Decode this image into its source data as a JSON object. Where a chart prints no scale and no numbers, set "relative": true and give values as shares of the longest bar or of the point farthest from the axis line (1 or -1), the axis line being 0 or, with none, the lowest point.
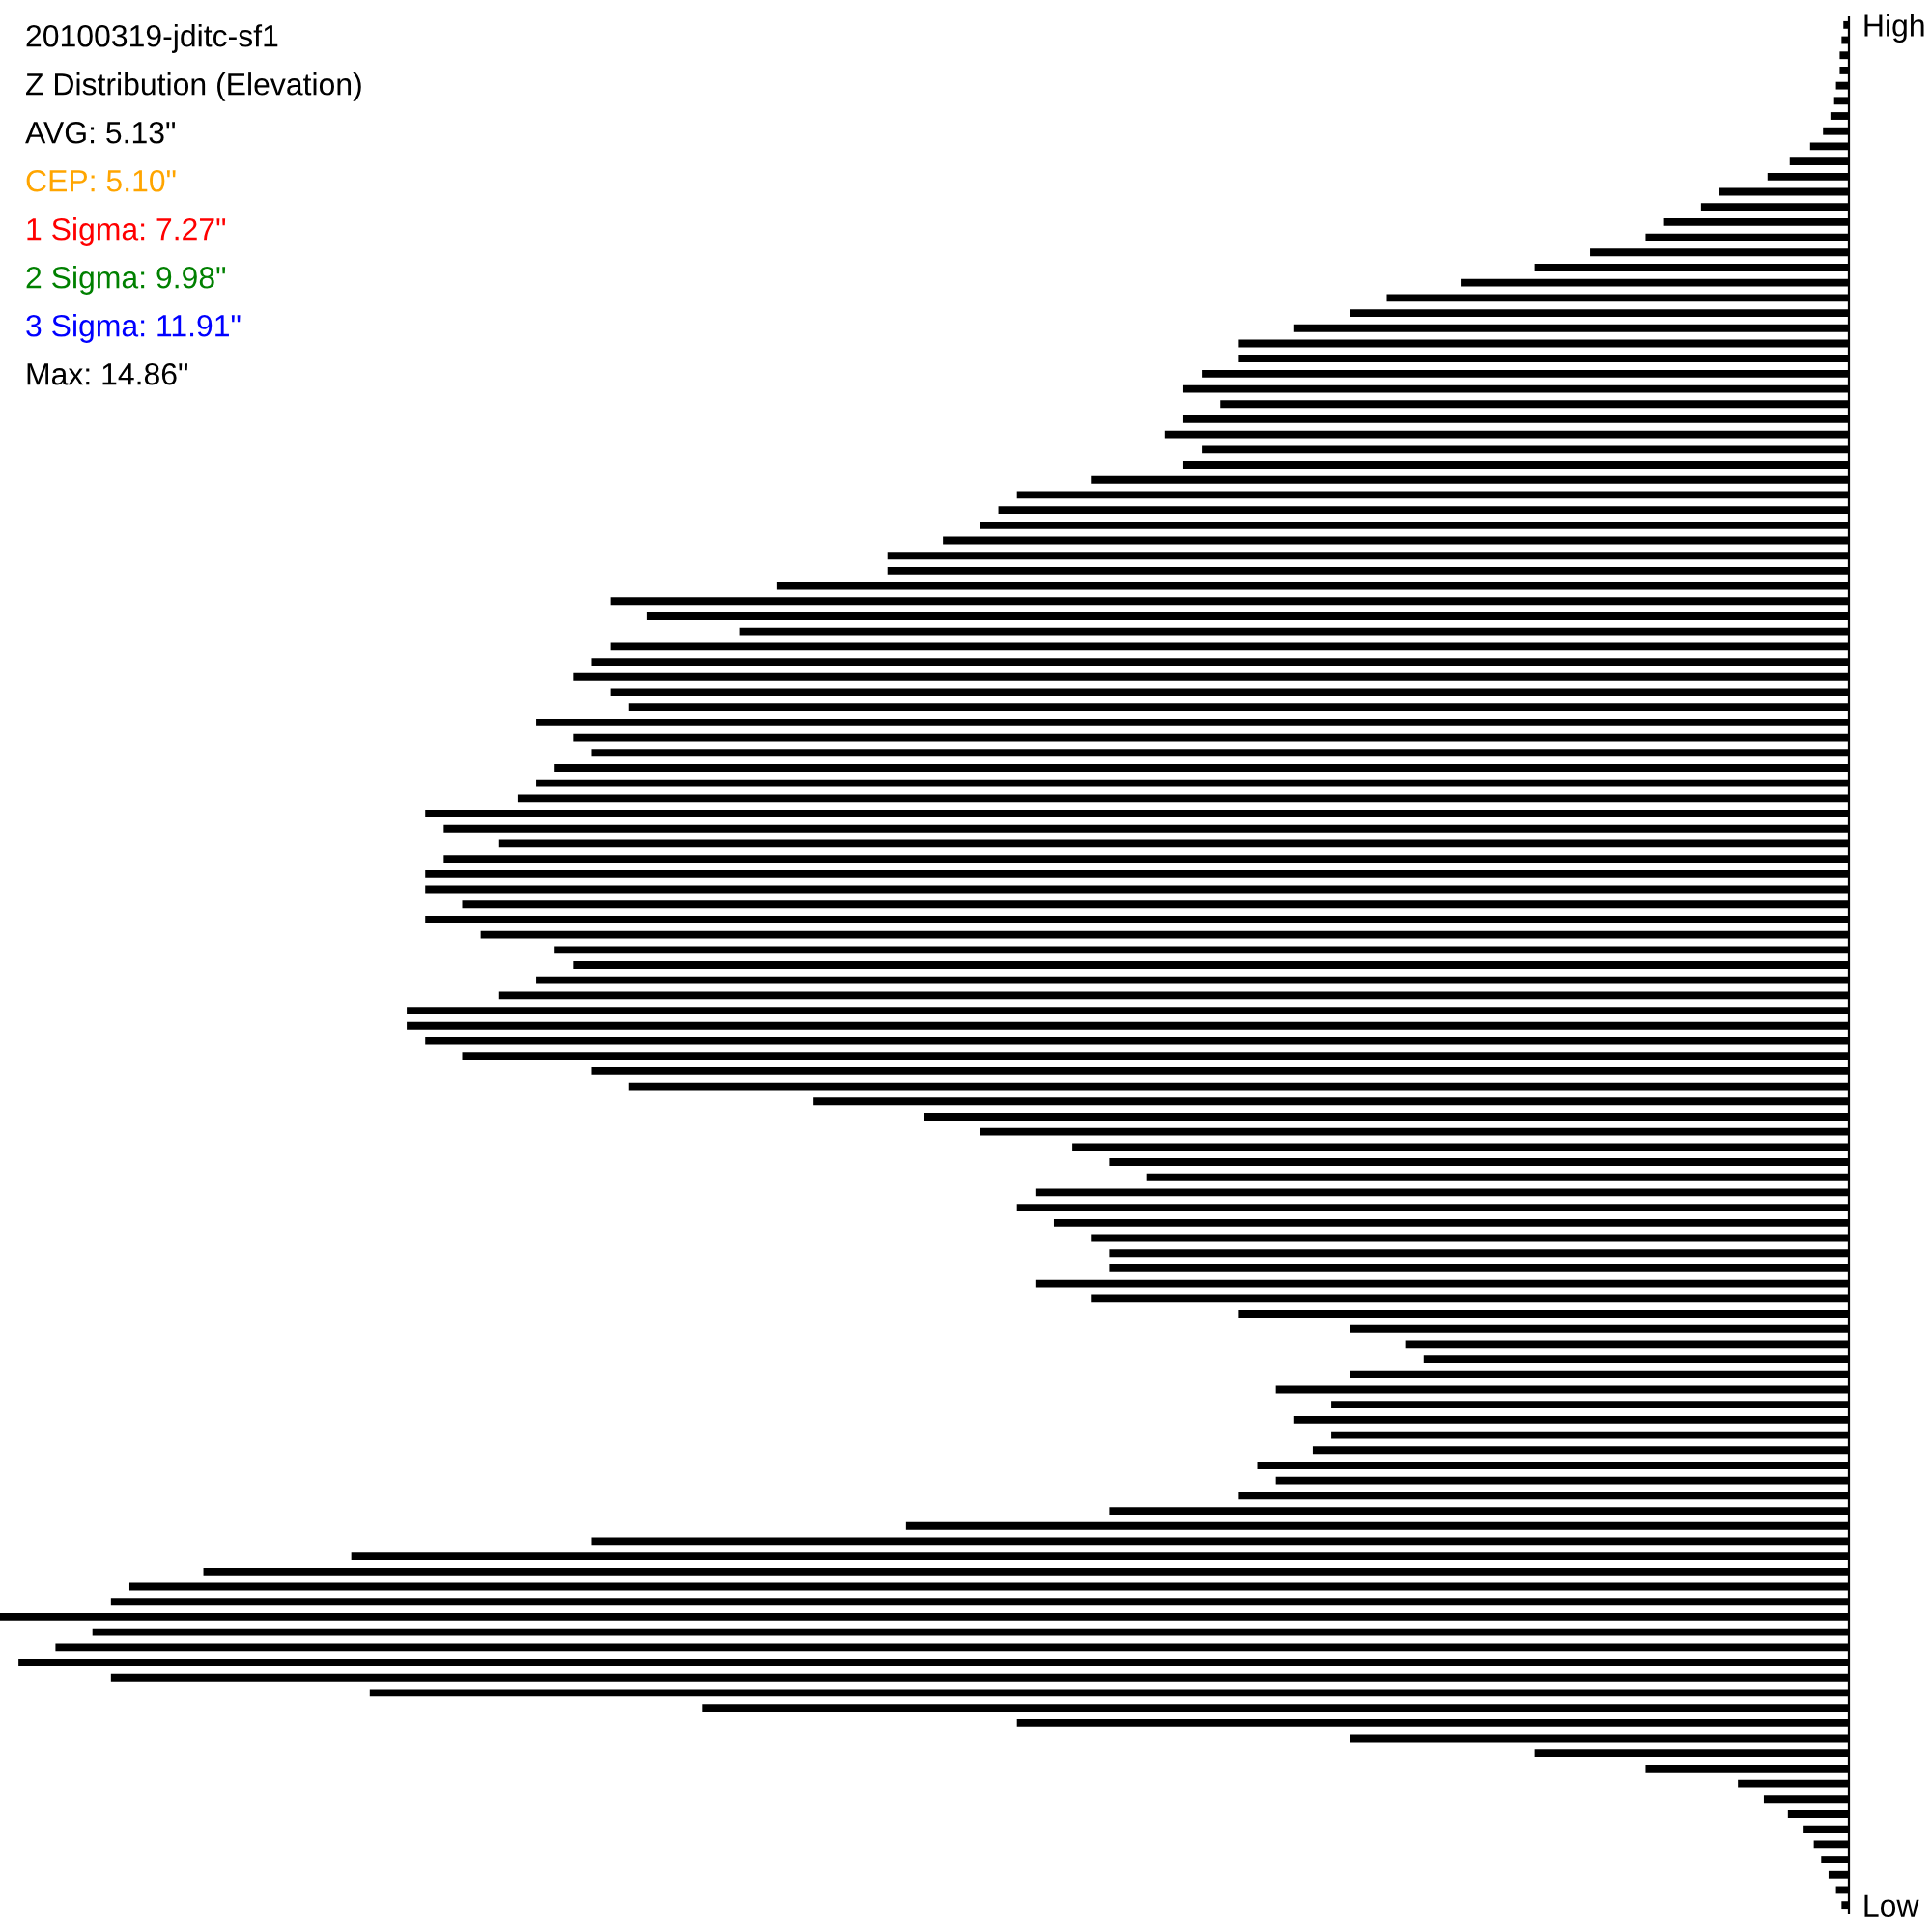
{
  "chart_data": {
    "type": "bar",
    "orientation": "horizontal",
    "relative": true,
    "color": "#000000",
    "tick_labels": "y",
    "title": "20100319-jditc-sf1",
    "subtitle": "Z Distribution (Elevation)",
    "annotations": [
      "AVG: 5.13\"",
      "CEP: 5.10\"",
      "1 Sigma: 7.27\"",
      "2 Sigma: 9.98\"",
      "3 Sigma: 11.91\"",
      "Max: 14.86\""
    ],
    "categories": [
      "High",
      null,
      null,
      null,
      null,
      null,
      null,
      null,
      null,
      null,
      null,
      null,
      null,
      null,
      null,
      null,
      null,
      null,
      null,
      null,
      null,
      null,
      null,
      null,
      null,
      null,
      null,
      null,
      null,
      null,
      null,
      null,
      null,
      null,
      null,
      null,
      null,
      null,
      null,
      null,
      null,
      null,
      null,
      null,
      null,
      null,
      null,
      null,
      null,
      null,
      null,
      null,
      null,
      null,
      null,
      null,
      null,
      null,
      null,
      null,
      null,
      null,
      null,
      null,
      null,
      null,
      null,
      null,
      null,
      null,
      null,
      null,
      null,
      null,
      null,
      null,
      null,
      null,
      null,
      null,
      null,
      null,
      null,
      null,
      null,
      null,
      null,
      null,
      null,
      null,
      null,
      null,
      null,
      null,
      null,
      null,
      null,
      null,
      null,
      null,
      null,
      null,
      null,
      null,
      null,
      null,
      null,
      null,
      null,
      null,
      null,
      null,
      null,
      null,
      null,
      null,
      null,
      null,
      null,
      null,
      null,
      null,
      null,
      null,
      "Low"
    ],
    "values": [
      -0.003,
      -0.004,
      -0.005,
      -0.005,
      -0.007,
      -0.008,
      -0.01,
      -0.014,
      -0.021,
      -0.032,
      -0.044,
      -0.07,
      -0.08,
      -0.1,
      -0.11,
      -0.14,
      -0.17,
      -0.21,
      -0.25,
      -0.27,
      -0.3,
      -0.33,
      -0.33,
      -0.35,
      -0.36,
      -0.34,
      -0.36,
      -0.37,
      -0.35,
      -0.36,
      -0.41,
      -0.45,
      -0.46,
      -0.47,
      -0.49,
      -0.52,
      -0.52,
      -0.58,
      -0.67,
      -0.65,
      -0.6,
      -0.67,
      -0.68,
      -0.69,
      -0.67,
      -0.66,
      -0.71,
      -0.69,
      -0.68,
      -0.7,
      -0.71,
      -0.72,
      -0.77,
      -0.76,
      -0.73,
      -0.76,
      -0.77,
      -0.77,
      -0.75,
      -0.77,
      -0.74,
      -0.7,
      -0.69,
      -0.71,
      -0.73,
      -0.78,
      -0.78,
      -0.77,
      -0.75,
      -0.68,
      -0.66,
      -0.56,
      -0.5,
      -0.47,
      -0.42,
      -0.4,
      -0.38,
      -0.44,
      -0.45,
      -0.43,
      -0.41,
      -0.4,
      -0.4,
      -0.44,
      -0.41,
      -0.33,
      -0.27,
      -0.24,
      -0.23,
      -0.27,
      -0.31,
      -0.28,
      -0.3,
      -0.28,
      -0.29,
      -0.32,
      -0.31,
      -0.33,
      -0.4,
      -0.51,
      -0.68,
      -0.81,
      -0.89,
      -0.93,
      -0.94,
      -1,
      -0.95,
      -0.97,
      -0.99,
      -0.94,
      -0.8,
      -0.62,
      -0.45,
      -0.27,
      -0.17,
      -0.11,
      -0.06,
      -0.046,
      -0.033,
      -0.025,
      -0.019,
      -0.015,
      -0.011,
      -0.007,
      -0.004
    ]
  }
}
